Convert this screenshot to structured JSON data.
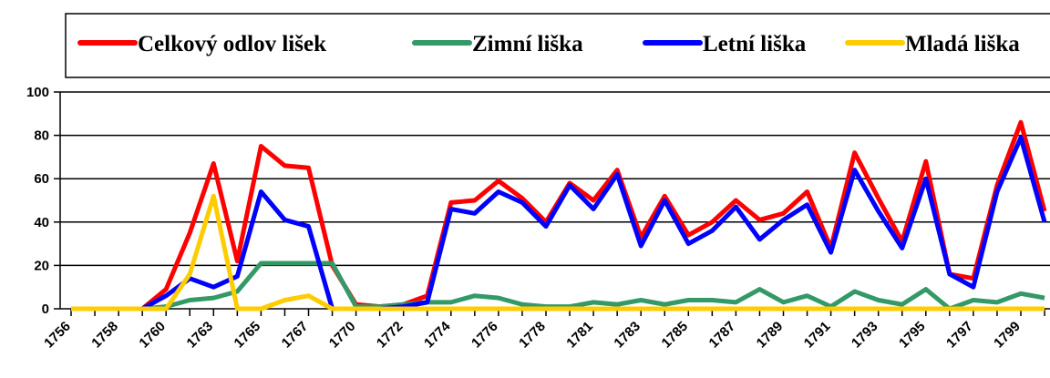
{
  "chart_data": {
    "type": "line",
    "categories": [
      "1756",
      null,
      "1758",
      null,
      "1760",
      null,
      "1763",
      null,
      "1765",
      null,
      "1767",
      null,
      "1770",
      null,
      "1772",
      null,
      "1774",
      null,
      "1776",
      null,
      "1778",
      null,
      "1781",
      null,
      "1783",
      null,
      "1785",
      null,
      "1787",
      null,
      "1789",
      null,
      "1791",
      null,
      "1793",
      null,
      "1795",
      null,
      "1797",
      null,
      "1799",
      null
    ],
    "series": [
      {
        "name": "Celkový odlov lišek",
        "color": "#ff0000",
        "values": [
          0,
          0,
          0,
          0,
          9,
          35,
          67,
          22,
          75,
          66,
          65,
          20,
          2,
          1,
          2,
          6,
          49,
          50,
          59,
          51,
          40,
          58,
          50,
          64,
          33,
          52,
          34,
          40,
          50,
          41,
          44,
          54,
          28,
          72,
          51,
          31,
          68,
          16,
          14,
          57,
          86,
          45
        ]
      },
      {
        "name": "Zimní liška",
        "color": "#339966",
        "values": [
          0,
          0,
          0,
          0,
          1,
          4,
          5,
          8,
          21,
          21,
          21,
          21,
          1,
          1,
          2,
          3,
          3,
          6,
          5,
          2,
          1,
          1,
          3,
          2,
          4,
          2,
          4,
          4,
          3,
          9,
          3,
          6,
          1,
          8,
          4,
          2,
          9,
          0,
          4,
          3,
          7,
          5
        ]
      },
      {
        "name": "Letní liška",
        "color": "#0000ff",
        "values": [
          0,
          0,
          0,
          0,
          6,
          14,
          10,
          15,
          54,
          41,
          38,
          0,
          0,
          0,
          1,
          3,
          46,
          44,
          54,
          49,
          38,
          57,
          46,
          62,
          29,
          50,
          30,
          36,
          47,
          32,
          41,
          48,
          26,
          64,
          45,
          28,
          60,
          16,
          10,
          54,
          79,
          40
        ]
      },
      {
        "name": "Mladá liška",
        "color": "#ffcc00",
        "values": [
          0,
          0,
          0,
          0,
          0,
          16,
          52,
          0,
          0,
          4,
          6,
          0,
          0,
          0,
          0,
          0,
          0,
          0,
          0,
          0,
          0,
          0,
          0,
          0,
          0,
          0,
          0,
          0,
          0,
          0,
          0,
          0,
          0,
          0,
          0,
          0,
          0,
          0,
          0,
          0,
          0,
          0
        ]
      }
    ],
    "ylim": [
      0,
      100
    ],
    "yticks": [
      0,
      20,
      40,
      60,
      80,
      100
    ],
    "grid": true,
    "legend": "top"
  }
}
